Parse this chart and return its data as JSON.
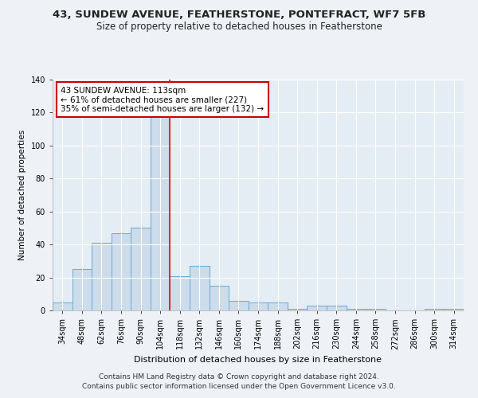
{
  "title": "43, SUNDEW AVENUE, FEATHERSTONE, PONTEFRACT, WF7 5FB",
  "subtitle": "Size of property relative to detached houses in Featherstone",
  "xlabel": "Distribution of detached houses by size in Featherstone",
  "ylabel": "Number of detached properties",
  "categories": [
    "34sqm",
    "48sqm",
    "62sqm",
    "76sqm",
    "90sqm",
    "104sqm",
    "118sqm",
    "132sqm",
    "146sqm",
    "160sqm",
    "174sqm",
    "188sqm",
    "202sqm",
    "216sqm",
    "230sqm",
    "244sqm",
    "258sqm",
    "272sqm",
    "286sqm",
    "300sqm",
    "314sqm"
  ],
  "values": [
    5,
    25,
    41,
    47,
    50,
    130,
    21,
    27,
    15,
    6,
    5,
    5,
    1,
    3,
    3,
    1,
    1,
    0,
    0,
    1,
    1
  ],
  "bar_color": "#ccdcea",
  "bar_edge_color": "#6aaad4",
  "red_line_index": 5,
  "annotation_text": "43 SUNDEW AVENUE: 113sqm\n← 61% of detached houses are smaller (227)\n35% of semi-detached houses are larger (132) →",
  "annotation_box_color": "#ffffff",
  "annotation_box_edge_color": "#cc0000",
  "ylim": [
    0,
    140
  ],
  "yticks": [
    0,
    20,
    40,
    60,
    80,
    100,
    120,
    140
  ],
  "background_color": "#eef2f7",
  "plot_bg_color": "#e4ecf4",
  "footer1": "Contains HM Land Registry data © Crown copyright and database right 2024.",
  "footer2": "Contains public sector information licensed under the Open Government Licence v3.0.",
  "title_fontsize": 9.5,
  "subtitle_fontsize": 8.5,
  "xlabel_fontsize": 8,
  "ylabel_fontsize": 7.5,
  "tick_fontsize": 7,
  "annotation_fontsize": 7.5,
  "footer_fontsize": 6.5
}
